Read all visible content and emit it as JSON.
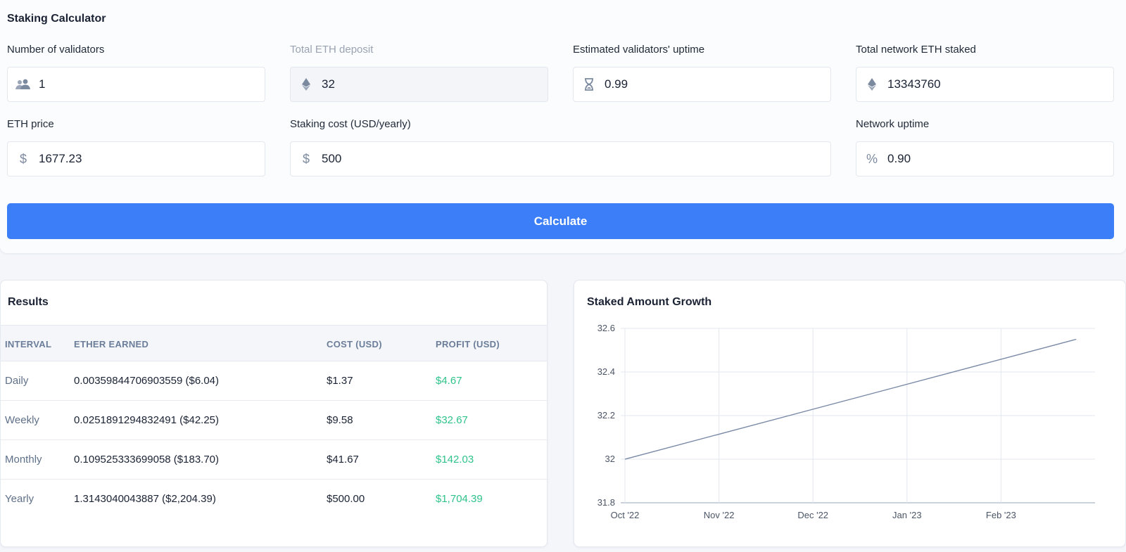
{
  "calculator": {
    "title": "Staking Calculator",
    "fields": {
      "validators": {
        "label": "Number of validators",
        "value": "1",
        "icon": "users-icon"
      },
      "deposit": {
        "label": "Total ETH deposit",
        "value": "32",
        "icon": "ethereum-icon"
      },
      "uptime": {
        "label": "Estimated validators' uptime",
        "value": "0.99",
        "icon": "hourglass-icon"
      },
      "network_staked": {
        "label": "Total network ETH staked",
        "value": "13343760",
        "icon": "ethereum-icon"
      },
      "eth_price": {
        "label": "ETH price",
        "value": "1677.23",
        "icon": "dollar-icon"
      },
      "staking_cost": {
        "label": "Staking cost (USD/yearly)",
        "value": "500",
        "icon": "dollar-icon"
      },
      "network_uptime": {
        "label": "Network uptime",
        "value": "0.90",
        "icon": "percent-icon"
      }
    },
    "calculate_label": "Calculate"
  },
  "results": {
    "title": "Results",
    "headers": [
      "INTERVAL",
      "ETHER EARNED",
      "COST (USD)",
      "PROFIT (USD)"
    ],
    "rows": [
      {
        "interval": "Daily",
        "ether": "0.00359844706903559 ($6.04)",
        "cost": "$1.37",
        "profit": "$4.67"
      },
      {
        "interval": "Weekly",
        "ether": "0.0251891294832491 ($42.25)",
        "cost": "$9.58",
        "profit": "$32.67"
      },
      {
        "interval": "Monthly",
        "ether": "0.109525333699058 ($183.70)",
        "cost": "$41.67",
        "profit": "$142.03"
      },
      {
        "interval": "Yearly",
        "ether": "1.3143040043887 ($2,204.39)",
        "cost": "$500.00",
        "profit": "$1,704.39"
      }
    ]
  },
  "chart": {
    "title": "Staked Amount Growth"
  },
  "chart_data": {
    "type": "line",
    "title": "Staked Amount Growth",
    "x_tick_labels": [
      "Oct '22",
      "Nov '22",
      "Dec '22",
      "Jan '23",
      "Feb '23"
    ],
    "y_tick_labels": [
      "31.8",
      "32",
      "32.2",
      "32.4",
      "32.6"
    ],
    "ylim": [
      31.8,
      32.6
    ],
    "xlim_months": [
      0,
      5
    ],
    "series": [
      {
        "x": [
          0,
          4.8
        ],
        "y": [
          32.0,
          32.55
        ]
      }
    ],
    "line_color": "#7a8aa6",
    "grid": true
  }
}
